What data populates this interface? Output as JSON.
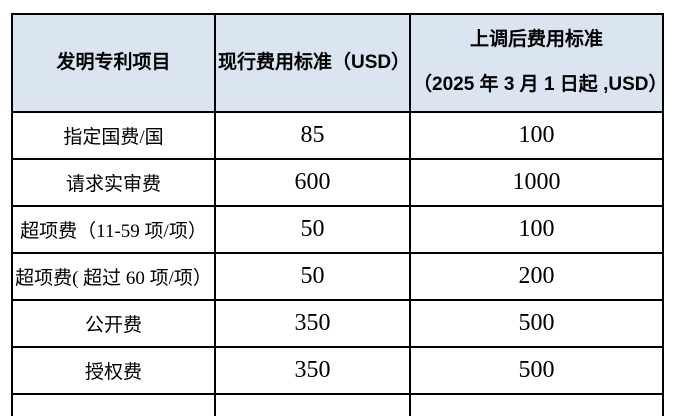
{
  "colors": {
    "header_bg": "#dbe4f1",
    "border": "#000000",
    "text": "#000000",
    "page_bg": "#ffffff"
  },
  "table": {
    "columns": [
      {
        "label": "发明专利项目"
      },
      {
        "label": "现行费用标准（USD）"
      },
      {
        "label_line1": "上调后费用标准",
        "label_line2": "（2025 年 3 月 1 日起 ,USD）"
      }
    ],
    "rows": [
      {
        "item": "指定国费/国",
        "current": "85",
        "adjusted": "100"
      },
      {
        "item": "请求实审费",
        "current": "600",
        "adjusted": "1000"
      },
      {
        "item": "超项费（11-59 项/项）",
        "current": "50",
        "adjusted": "100"
      },
      {
        "item": "超项费( 超过 60 项/项）",
        "current": "50",
        "adjusted": "200"
      },
      {
        "item": "公开费",
        "current": "350",
        "adjusted": "500"
      },
      {
        "item": "授权费",
        "current": "350",
        "adjusted": "500"
      }
    ]
  }
}
